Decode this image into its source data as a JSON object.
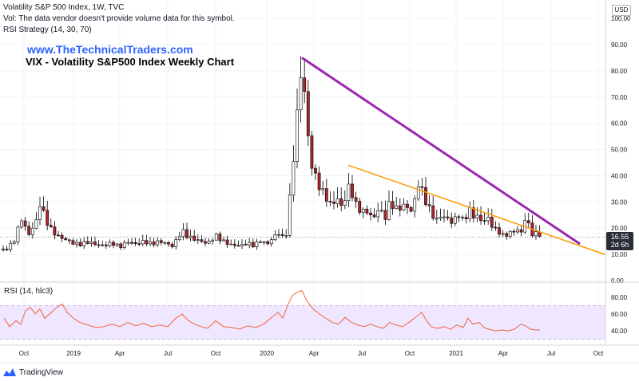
{
  "legend": {
    "symbol": "Volatility S&P 500 Index, 1W, TVC",
    "vol_note": "Vol: The data vendor doesn't provide volume data for this symbol.",
    "strategy": "RSI Strategy (14, 30, 70)"
  },
  "watermark": {
    "site": "www.TheTechnicalTraders.com",
    "headline": "VIX - Volatility S&P500 Index Weekly Chart"
  },
  "rsi_label": "RSI (14, hlc3)",
  "currency": "USD",
  "last_price": {
    "value": "16.55",
    "countdown": "2d 6h"
  },
  "brand": "TradingView",
  "colors": {
    "up": "#ffffff",
    "down": "#b2232a",
    "purple": "#9c27b0",
    "orange": "#ff9800",
    "rsi_line": "#f0643c",
    "rsi_band": "#efe6ff"
  },
  "chart_data": [
    {
      "type": "candlestick",
      "title": "Volatility S&P 500 Index, 1W, TVC",
      "x_tick_labels": [
        "Oct",
        "2019",
        "Apr",
        "Jul",
        "Oct",
        "2020",
        "Apr",
        "Jul",
        "Oct",
        "2021",
        "Apr",
        "Jul",
        "Oct"
      ],
      "y_ticks": [
        0,
        10,
        20,
        30,
        40,
        50,
        60,
        70,
        80,
        90,
        100
      ],
      "y_tick_labels": [
        "0.00",
        "10.00",
        "20.00",
        "30.00",
        "40.00",
        "50.00",
        "60.00",
        "70.00",
        "80.00",
        "90.00",
        "100.00"
      ],
      "ylim": [
        0,
        104
      ],
      "last_value": 16.55,
      "price_path": [
        [
          0,
          12
        ],
        [
          4,
          12
        ],
        [
          10,
          13
        ],
        [
          16,
          15
        ],
        [
          20,
          17
        ],
        [
          26,
          25
        ],
        [
          30,
          22
        ],
        [
          36,
          18
        ],
        [
          40,
          20
        ],
        [
          44,
          24
        ],
        [
          48,
          22
        ],
        [
          50,
          30
        ],
        [
          55,
          26
        ],
        [
          60,
          22
        ],
        [
          66,
          19
        ],
        [
          74,
          17
        ],
        [
          82,
          16
        ],
        [
          92,
          14.5
        ],
        [
          100,
          14
        ],
        [
          110,
          15
        ],
        [
          120,
          14
        ],
        [
          130,
          13.5
        ],
        [
          140,
          14.5
        ],
        [
          150,
          13
        ],
        [
          160,
          15
        ],
        [
          170,
          14
        ],
        [
          180,
          15
        ],
        [
          190,
          14
        ],
        [
          200,
          15
        ],
        [
          210,
          14
        ],
        [
          216,
          13
        ],
        [
          222,
          16
        ],
        [
          228,
          19
        ],
        [
          234,
          17
        ],
        [
          240,
          16
        ],
        [
          250,
          15
        ],
        [
          260,
          14
        ],
        [
          270,
          17
        ],
        [
          278,
          15
        ],
        [
          288,
          13.5
        ],
        [
          300,
          13
        ],
        [
          310,
          14
        ],
        [
          318,
          13
        ],
        [
          326,
          15
        ],
        [
          334,
          13.5
        ],
        [
          342,
          16
        ],
        [
          348,
          18
        ],
        [
          354,
          16
        ],
        [
          358,
          17
        ],
        [
          362,
          28
        ],
        [
          366,
          40
        ],
        [
          370,
          57
        ],
        [
          374,
          66
        ],
        [
          378,
          82
        ],
        [
          383,
          63
        ],
        [
          388,
          45
        ],
        [
          393,
          40
        ],
        [
          398,
          36
        ],
        [
          403,
          33
        ],
        [
          408,
          31
        ],
        [
          413,
          28
        ],
        [
          418,
          29
        ],
        [
          423,
          30
        ],
        [
          428,
          27
        ],
        [
          433,
          31
        ],
        [
          438,
          36
        ],
        [
          443,
          29
        ],
        [
          448,
          27
        ],
        [
          453,
          25
        ],
        [
          458,
          26
        ],
        [
          463,
          24
        ],
        [
          468,
          23
        ],
        [
          473,
          26
        ],
        [
          478,
          25
        ],
        [
          483,
          23
        ],
        [
          488,
          29
        ],
        [
          493,
          27
        ],
        [
          498,
          26
        ],
        [
          503,
          27
        ],
        [
          508,
          28
        ],
        [
          513,
          25
        ],
        [
          518,
          27
        ],
        [
          523,
          36
        ],
        [
          528,
          33
        ],
        [
          533,
          29
        ],
        [
          538,
          26
        ],
        [
          543,
          23
        ],
        [
          548,
          22
        ],
        [
          553,
          24
        ],
        [
          558,
          23
        ],
        [
          563,
          22
        ],
        [
          568,
          21
        ],
        [
          573,
          25
        ],
        [
          578,
          22
        ],
        [
          583,
          23
        ],
        [
          588,
          26
        ],
        [
          593,
          23
        ],
        [
          598,
          24
        ],
        [
          603,
          21
        ],
        [
          608,
          23
        ],
        [
          613,
          22
        ],
        [
          618,
          19
        ],
        [
          623,
          18
        ],
        [
          628,
          17
        ],
        [
          633,
          16
        ],
        [
          638,
          18
        ],
        [
          643,
          17.5
        ],
        [
          648,
          19
        ],
        [
          653,
          17
        ],
        [
          658,
          24
        ],
        [
          662,
          20
        ],
        [
          666,
          17
        ],
        [
          670,
          17.5
        ],
        [
          675,
          16.55
        ]
      ],
      "trendlines": [
        {
          "color": "#9c27b0",
          "from": [
            378,
            85
          ],
          "to": [
            726,
            14
          ]
        },
        {
          "color": "#ff9800",
          "from": [
            436,
            44
          ],
          "to": [
            757,
            10
          ]
        }
      ]
    },
    {
      "type": "line",
      "title": "RSI (14, hlc3)",
      "y_ticks": [
        40,
        60,
        80
      ],
      "y_tick_labels": [
        "40.00",
        "60.00",
        "80.00"
      ],
      "ylim": [
        24,
        96
      ],
      "band": [
        30,
        70
      ],
      "points": [
        [
          5,
          55
        ],
        [
          12,
          45
        ],
        [
          20,
          52
        ],
        [
          26,
          48
        ],
        [
          32,
          64
        ],
        [
          38,
          68
        ],
        [
          44,
          60
        ],
        [
          50,
          66
        ],
        [
          56,
          55
        ],
        [
          62,
          60
        ],
        [
          70,
          67
        ],
        [
          78,
          72
        ],
        [
          84,
          62
        ],
        [
          92,
          55
        ],
        [
          100,
          50
        ],
        [
          110,
          47
        ],
        [
          120,
          44
        ],
        [
          130,
          45
        ],
        [
          140,
          48
        ],
        [
          150,
          45
        ],
        [
          160,
          50
        ],
        [
          170,
          46
        ],
        [
          180,
          49
        ],
        [
          190,
          45
        ],
        [
          200,
          47
        ],
        [
          210,
          45
        ],
        [
          220,
          55
        ],
        [
          228,
          60
        ],
        [
          236,
          52
        ],
        [
          244,
          48
        ],
        [
          252,
          45
        ],
        [
          260,
          43
        ],
        [
          270,
          52
        ],
        [
          280,
          45
        ],
        [
          290,
          44
        ],
        [
          300,
          42
        ],
        [
          310,
          46
        ],
        [
          320,
          44
        ],
        [
          330,
          48
        ],
        [
          340,
          56
        ],
        [
          348,
          62
        ],
        [
          354,
          55
        ],
        [
          360,
          70
        ],
        [
          366,
          82
        ],
        [
          372,
          86
        ],
        [
          378,
          88
        ],
        [
          384,
          76
        ],
        [
          392,
          66
        ],
        [
          400,
          60
        ],
        [
          408,
          55
        ],
        [
          416,
          50
        ],
        [
          424,
          48
        ],
        [
          432,
          56
        ],
        [
          440,
          50
        ],
        [
          448,
          47
        ],
        [
          456,
          45
        ],
        [
          464,
          48
        ],
        [
          472,
          45
        ],
        [
          480,
          43
        ],
        [
          488,
          50
        ],
        [
          496,
          47
        ],
        [
          504,
          45
        ],
        [
          512,
          50
        ],
        [
          520,
          56
        ],
        [
          528,
          62
        ],
        [
          534,
          52
        ],
        [
          540,
          45
        ],
        [
          548,
          43
        ],
        [
          556,
          45
        ],
        [
          564,
          42
        ],
        [
          572,
          47
        ],
        [
          580,
          44
        ],
        [
          586,
          55
        ],
        [
          592,
          48
        ],
        [
          600,
          50
        ],
        [
          606,
          44
        ],
        [
          612,
          42
        ],
        [
          620,
          40
        ],
        [
          628,
          41
        ],
        [
          636,
          40
        ],
        [
          644,
          42
        ],
        [
          652,
          48
        ],
        [
          658,
          46
        ],
        [
          664,
          42
        ],
        [
          670,
          41
        ],
        [
          676,
          41
        ]
      ]
    }
  ]
}
